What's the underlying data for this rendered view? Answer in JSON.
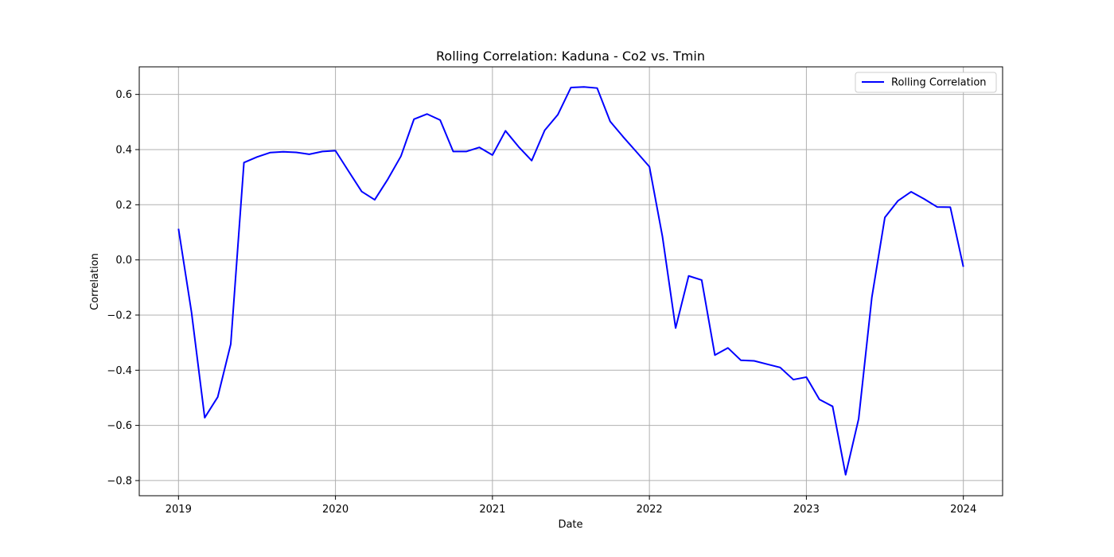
{
  "chart_data": {
    "type": "line",
    "title": "Rolling Correlation: Kaduna - Co2 vs. Tmin",
    "xlabel": "Date",
    "ylabel": "Correlation",
    "xlim": [
      2018.75,
      2024.25
    ],
    "ylim": [
      -0.855,
      0.7
    ],
    "x_ticks": [
      2019,
      2020,
      2021,
      2022,
      2023,
      2024
    ],
    "x_tick_labels": [
      "2019",
      "2020",
      "2021",
      "2022",
      "2023",
      "2024"
    ],
    "y_ticks": [
      -0.8,
      -0.6,
      -0.4,
      -0.2,
      0.0,
      0.2,
      0.4,
      0.6
    ],
    "y_tick_labels": [
      "−0.8",
      "−0.6",
      "−0.4",
      "−0.2",
      "0.0",
      "0.2",
      "0.4",
      "0.6"
    ],
    "grid": true,
    "legend": {
      "placement": "top-right",
      "entries": [
        "Rolling Correlation"
      ]
    },
    "series": [
      {
        "name": "Rolling Correlation",
        "color": "#0000ff",
        "x": [
          2019.0,
          2019.083,
          2019.167,
          2019.25,
          2019.333,
          2019.417,
          2019.5,
          2019.583,
          2019.667,
          2019.75,
          2019.833,
          2019.917,
          2020.0,
          2020.083,
          2020.167,
          2020.25,
          2020.333,
          2020.417,
          2020.5,
          2020.583,
          2020.667,
          2020.75,
          2020.833,
          2020.917,
          2021.0,
          2021.083,
          2021.167,
          2021.25,
          2021.333,
          2021.417,
          2021.5,
          2021.583,
          2021.667,
          2021.75,
          2021.833,
          2021.917,
          2022.0,
          2022.083,
          2022.167,
          2022.25,
          2022.333,
          2022.417,
          2022.5,
          2022.583,
          2022.667,
          2022.75,
          2022.833,
          2022.917,
          2023.0,
          2023.083,
          2023.167,
          2023.25,
          2023.333,
          2023.417,
          2023.5,
          2023.583,
          2023.667,
          2023.75,
          2023.833,
          2023.917,
          2024.0
        ],
        "y": [
          0.113,
          -0.19,
          -0.572,
          -0.497,
          -0.305,
          0.353,
          0.373,
          0.389,
          0.392,
          0.39,
          0.383,
          0.393,
          0.396,
          0.322,
          0.248,
          0.218,
          0.292,
          0.376,
          0.51,
          0.529,
          0.507,
          0.393,
          0.393,
          0.408,
          0.38,
          0.468,
          0.41,
          0.36,
          0.47,
          0.527,
          0.625,
          0.627,
          0.623,
          0.502,
          0.446,
          0.392,
          0.338,
          0.085,
          -0.247,
          -0.058,
          -0.073,
          -0.345,
          -0.319,
          -0.364,
          -0.366,
          -0.378,
          -0.39,
          -0.434,
          -0.425,
          -0.506,
          -0.531,
          -0.779,
          -0.576,
          -0.136,
          0.154,
          0.214,
          0.247,
          0.221,
          0.192,
          0.191,
          -0.025
        ]
      }
    ]
  }
}
